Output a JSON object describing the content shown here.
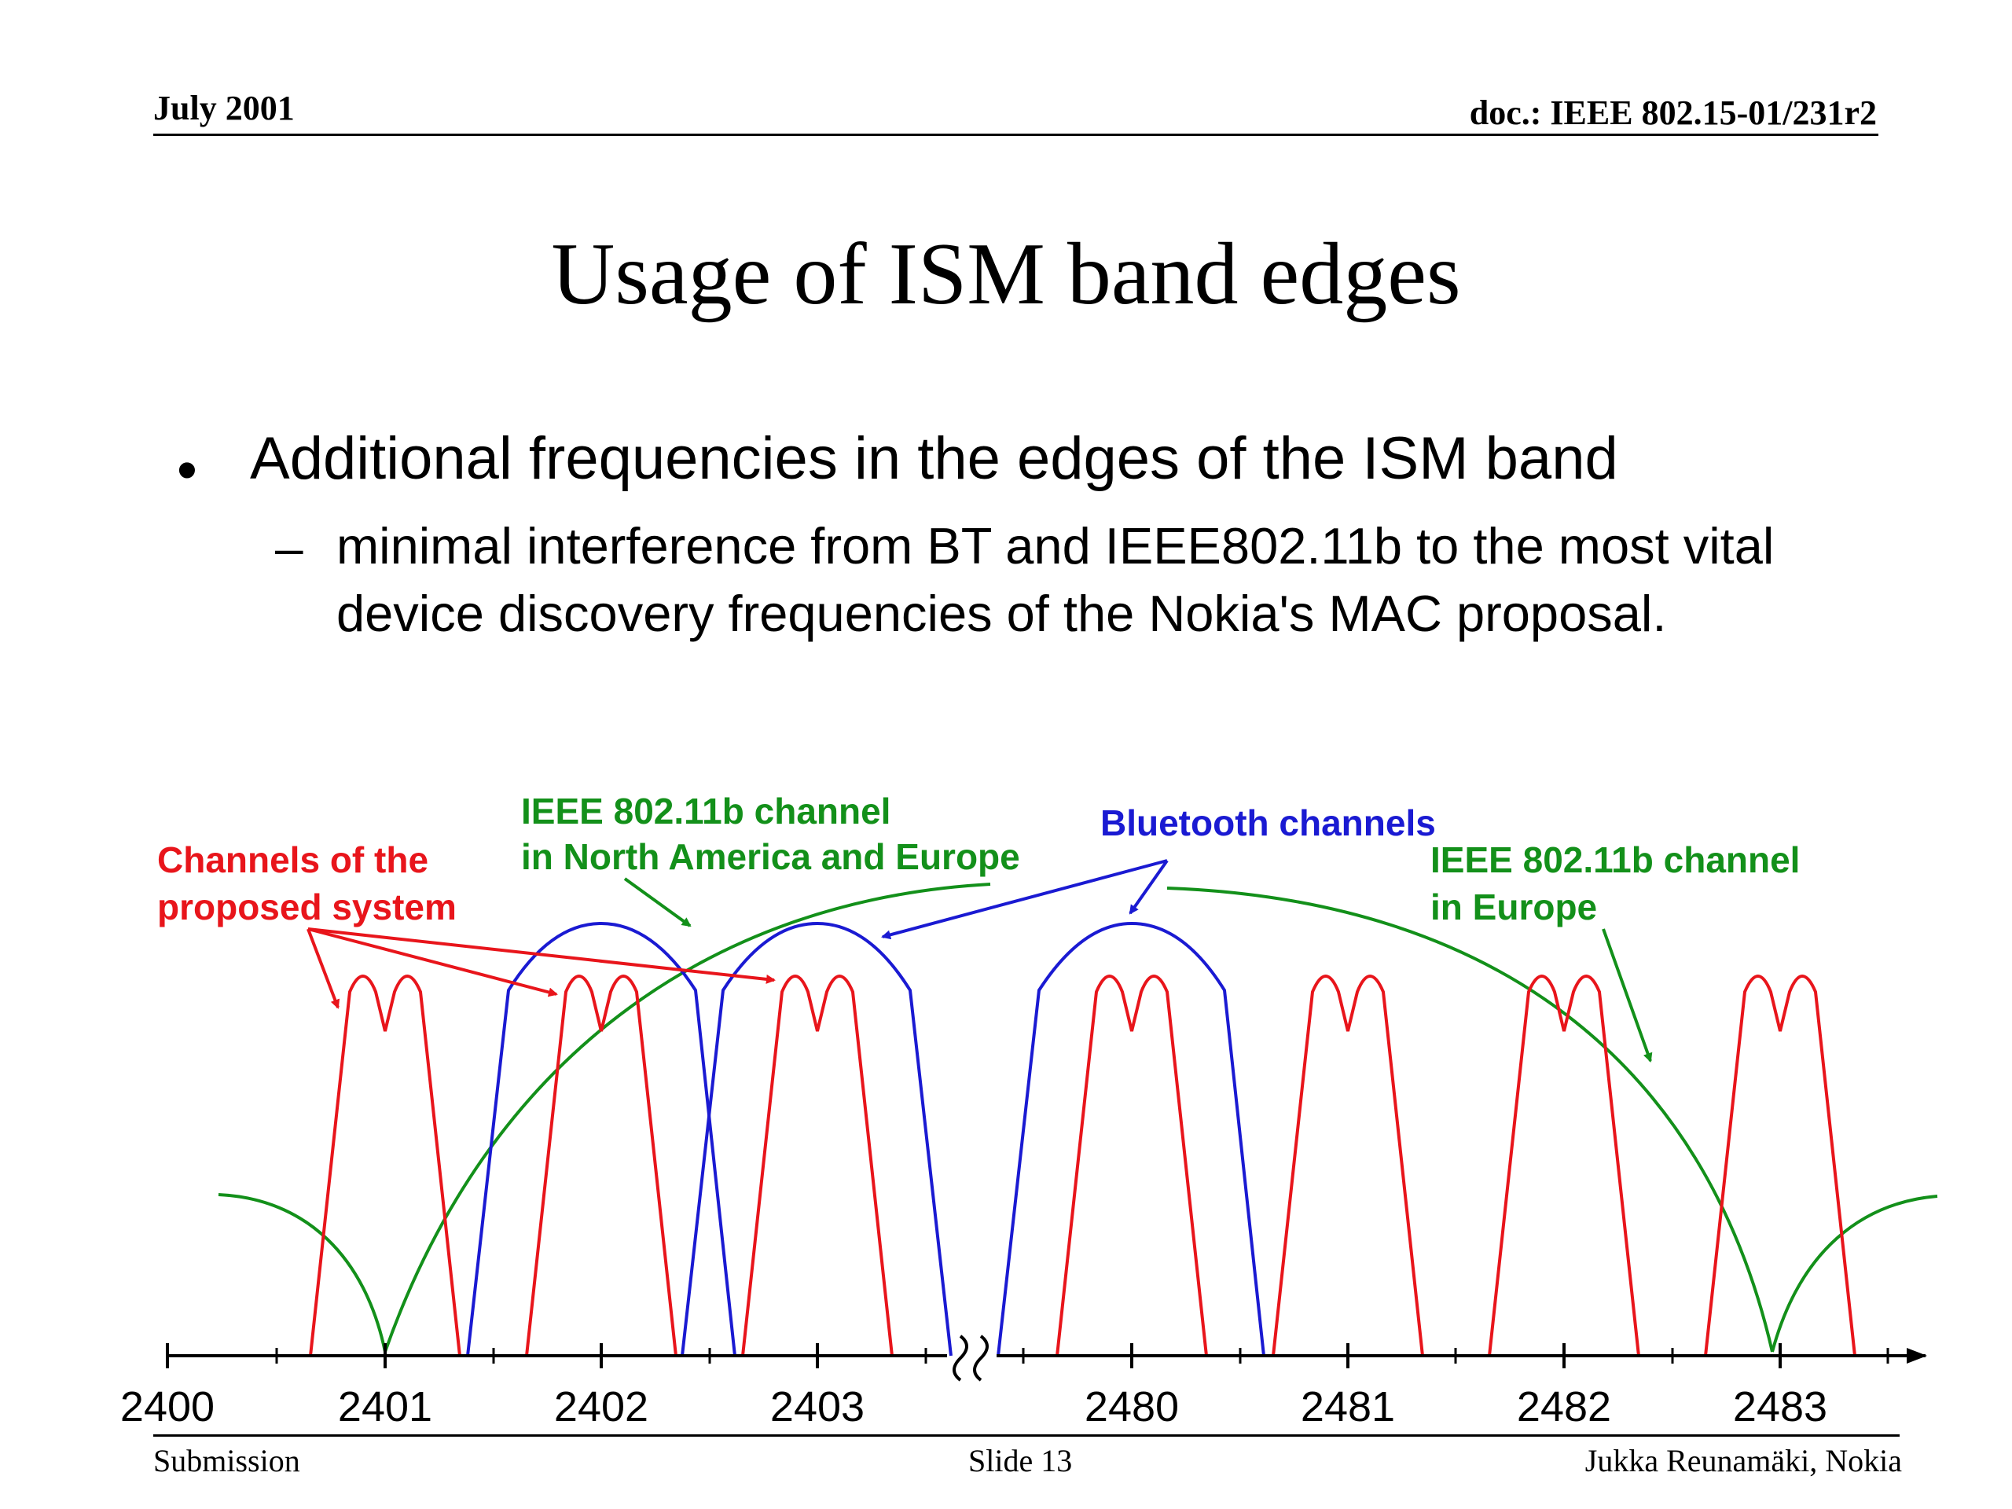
{
  "header": {
    "date": "July 2001",
    "doc": "doc.: IEEE 802.15-01/231r2"
  },
  "title": "Usage of ISM band edges",
  "bullet": {
    "text": "Additional frequencies in the edges of the ISM band",
    "sub": "minimal interference from BT and IEEE802.11b to the most vital device discovery frequencies of the Nokia's MAC proposal."
  },
  "diagram": {
    "labels": {
      "proposed_line1": "Channels of the",
      "proposed_line2": "proposed system",
      "wifi_na_line1": "IEEE 802.11b channel",
      "wifi_na_line2": "in North America and Europe",
      "bluetooth": "Bluetooth channels",
      "wifi_eu_line1": "IEEE 802.11b channel",
      "wifi_eu_line2": "in Europe"
    },
    "ticks": [
      "2400",
      "2401",
      "2402",
      "2403",
      "2480",
      "2481",
      "2482",
      "2483"
    ],
    "colors": {
      "proposed": "#e8151b",
      "wifi": "#13901a",
      "bluetooth": "#1a1ad2",
      "axis": "#000000"
    }
  },
  "footer": {
    "left": "Submission",
    "center": "Slide 13",
    "right": "Jukka Reunamäki, Nokia"
  }
}
